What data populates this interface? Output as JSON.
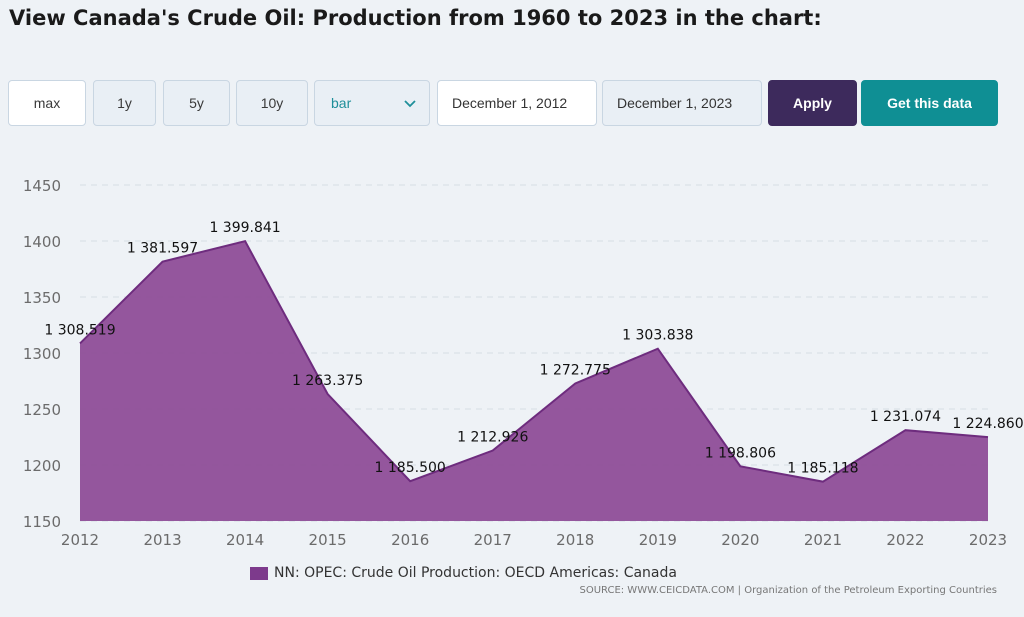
{
  "page": {
    "title": "View Canada's Crude Oil: Production from 1960 to 2023 in the chart:"
  },
  "controls": {
    "ranges": [
      "max",
      "1y",
      "5y",
      "10y"
    ],
    "active_range": "max",
    "chart_type": "bar",
    "start_date": "December 1, 2012",
    "end_date": "December 1, 2023",
    "apply_label": "Apply",
    "get_data_label": "Get this data"
  },
  "colors": {
    "area_fill": "#8e4d98",
    "area_line": "#6e2c7e",
    "legend_swatch": "#7d3a8c",
    "apply_bg": "#3d2a5c",
    "get_data_bg": "#0f8f94"
  },
  "chart_data": {
    "type": "area",
    "title": "",
    "xlabel": "",
    "ylabel": "",
    "x": [
      2012,
      2013,
      2014,
      2015,
      2016,
      2017,
      2018,
      2019,
      2020,
      2021,
      2022,
      2023
    ],
    "series": [
      {
        "name": "NN: OPEC: Crude Oil Production: OECD Americas: Canada",
        "values": [
          1308.519,
          1381.597,
          1399.841,
          1263.375,
          1185.5,
          1212.926,
          1272.775,
          1303.838,
          1198.806,
          1185.118,
          1231.074,
          1224.86
        ],
        "labels": [
          "1 308.519",
          "1 381.597",
          "1 399.841",
          "1 263.375",
          "1 185.500",
          "1 212.926",
          "1 272.775",
          "1 303.838",
          "1 198.806",
          "1 185.118",
          "1 231.074",
          "1 224.860"
        ]
      }
    ],
    "ylim": [
      1150,
      1450
    ],
    "yticks": [
      1150,
      1200,
      1250,
      1300,
      1350,
      1400,
      1450
    ],
    "grid": true,
    "legend": "bottom-center"
  },
  "source": "SOURCE: WWW.CEICDATA.COM | Organization of the Petroleum Exporting Countries"
}
